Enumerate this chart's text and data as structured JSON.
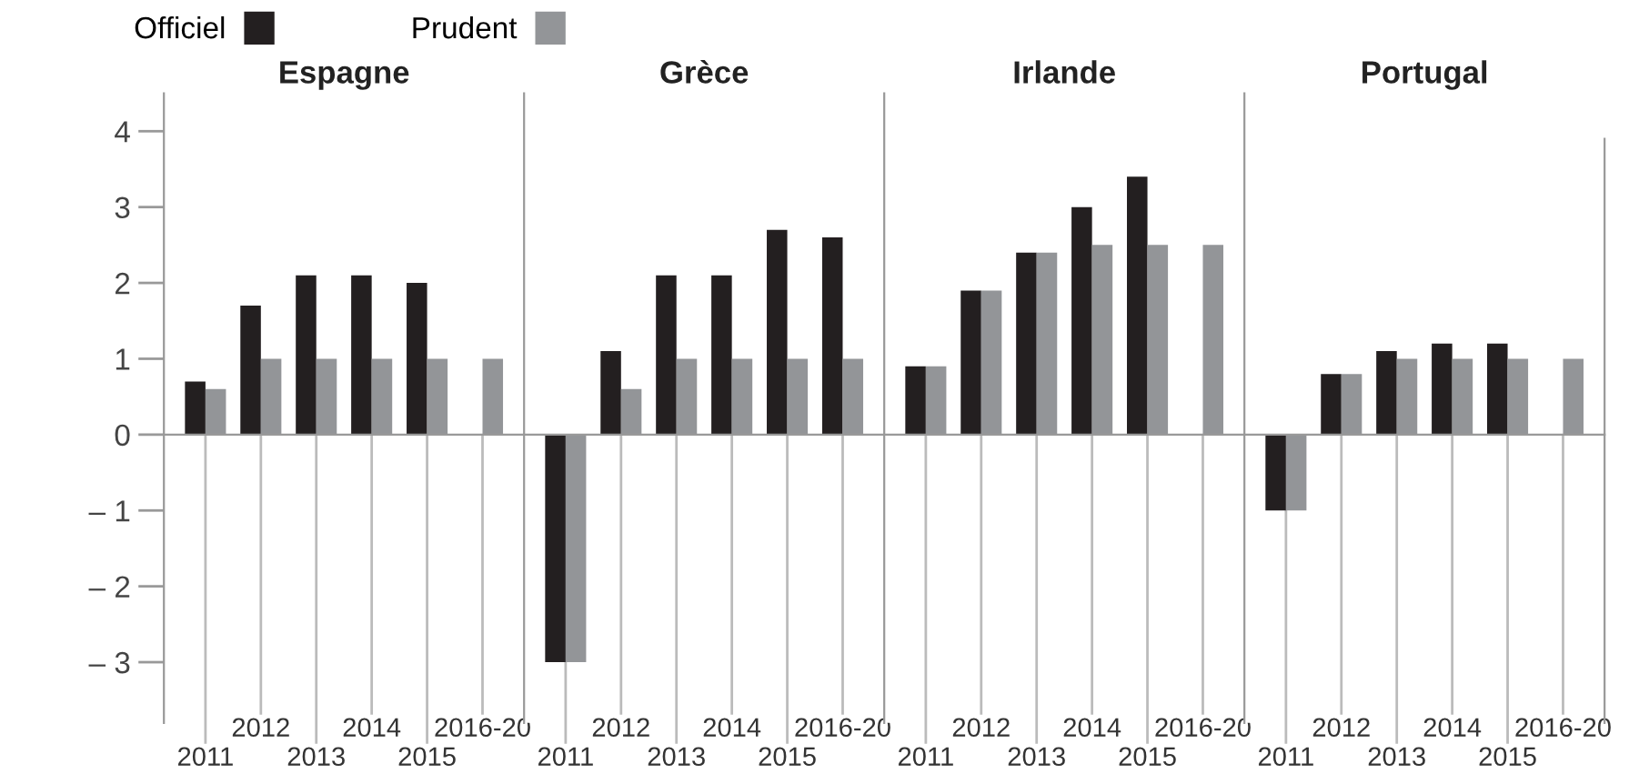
{
  "chart_data": [
    {
      "type": "bar",
      "title": "Espagne",
      "categories": [
        "2011",
        "2012",
        "2013",
        "2014",
        "2015",
        "2016-20"
      ],
      "series": [
        {
          "name": "Officiel",
          "color": "#231f20",
          "values": [
            0.7,
            1.7,
            2.1,
            2.1,
            2.0,
            null
          ]
        },
        {
          "name": "Prudent",
          "color": "#939598",
          "values": [
            0.6,
            1.0,
            1.0,
            1.0,
            1.0,
            1.0
          ]
        }
      ],
      "ylim": [
        -3.8,
        4.5
      ],
      "yticks": [
        {
          "value": -3,
          "label": "– 3"
        },
        {
          "value": -2,
          "label": "– 2"
        },
        {
          "value": -1,
          "label": "– 1"
        },
        0,
        1,
        2,
        3,
        4
      ],
      "legend": "top left"
    },
    {
      "type": "bar",
      "title": "Grèce",
      "categories": [
        "2011",
        "2012",
        "2013",
        "2014",
        "2015",
        "2016-20"
      ],
      "series": [
        {
          "color": "#231f20",
          "values": [
            -3.0,
            1.1,
            2.1,
            2.1,
            2.7,
            2.6
          ]
        },
        {
          "color": "#939598",
          "values": [
            -3.0,
            0.6,
            1.0,
            1.0,
            1.0,
            1.0
          ]
        }
      ],
      "ylim": [
        -3.8,
        4.5
      ],
      "tick_labels": "x"
    },
    {
      "type": "bar",
      "title": "Irlande",
      "categories": [
        "2011",
        "2012",
        "2013",
        "2014",
        "2015",
        "2016-20"
      ],
      "series": [
        {
          "color": "#231f20",
          "values": [
            0.9,
            1.9,
            2.4,
            3.0,
            3.4,
            null
          ]
        },
        {
          "color": "#939598",
          "values": [
            0.9,
            1.9,
            2.4,
            2.5,
            2.5,
            2.5
          ]
        }
      ],
      "ylim": [
        -3.8,
        4.5
      ],
      "tick_labels": "x"
    },
    {
      "type": "bar",
      "title": "Portugal",
      "categories": [
        "2011",
        "2012",
        "2013",
        "2014",
        "2015",
        "2016-20"
      ],
      "series": [
        {
          "color": "#231f20",
          "values": [
            -1.0,
            0.8,
            1.1,
            1.2,
            1.2,
            null
          ]
        },
        {
          "color": "#939598",
          "values": [
            -1.0,
            0.8,
            1.0,
            1.0,
            1.0,
            1.0
          ]
        }
      ],
      "ylim": [
        -3.8,
        4.5
      ],
      "tick_labels": "x"
    }
  ]
}
